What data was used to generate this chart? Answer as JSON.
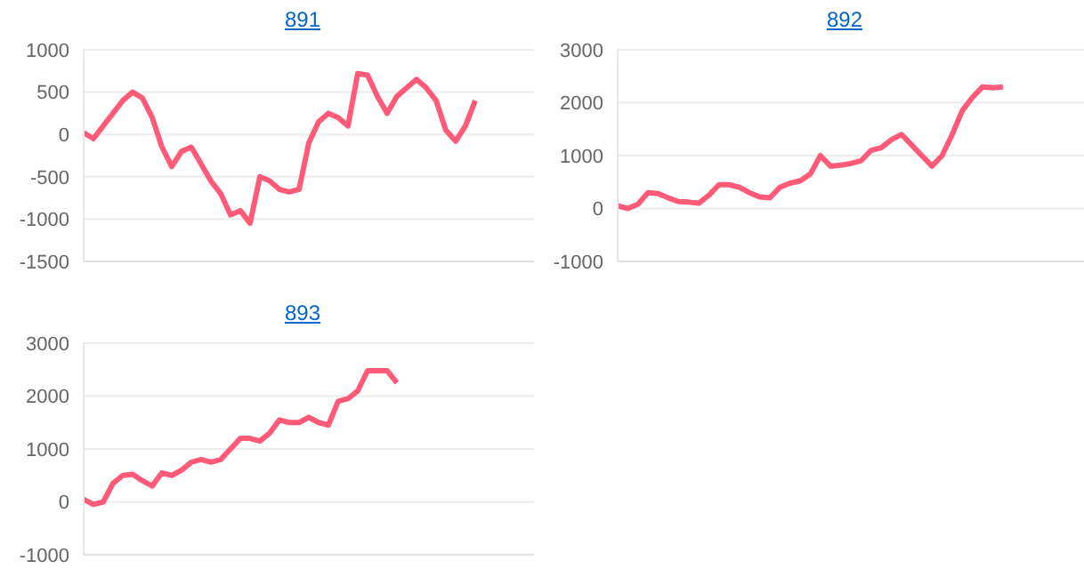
{
  "chart_data": [
    {
      "type": "line",
      "title": "891",
      "categories": [
        null,
        null,
        null,
        null,
        null,
        null,
        null,
        null,
        null,
        null,
        null,
        null,
        null,
        null,
        null,
        null,
        null,
        null,
        null,
        null,
        null,
        null,
        null,
        null,
        null,
        null,
        null,
        null,
        null,
        null,
        null,
        null,
        null,
        null,
        null,
        null,
        null,
        null,
        null,
        null,
        null,
        null,
        null,
        null,
        null,
        null,
        null
      ],
      "series": [
        {
          "color": "#ff5a78",
          "values": [
            20,
            -50,
            100,
            250,
            400,
            500,
            430,
            200,
            -150,
            -380,
            -200,
            -150,
            -350,
            -550,
            -700,
            -950,
            -900,
            -1050,
            -500,
            -550,
            -650,
            -680,
            -650,
            -100,
            150,
            250,
            200,
            100,
            720,
            700,
            450,
            250,
            450,
            550,
            650,
            550,
            400,
            50,
            -80,
            100,
            400,
            null,
            null,
            null,
            null,
            null,
            null
          ]
        }
      ],
      "ylim": [
        -1500,
        1000
      ],
      "yticks": [
        -1500,
        -1000,
        -500,
        0,
        500,
        1000
      ],
      "grid": "y",
      "tick_labels": "y",
      "legend": false,
      "marker": "none",
      "line_style": "solid"
    },
    {
      "type": "line",
      "title": "892",
      "categories": [
        null,
        null,
        null,
        null,
        null,
        null,
        null,
        null,
        null,
        null,
        null,
        null,
        null,
        null,
        null,
        null,
        null,
        null,
        null,
        null,
        null,
        null,
        null,
        null,
        null,
        null,
        null,
        null,
        null,
        null,
        null,
        null,
        null,
        null,
        null,
        null,
        null,
        null,
        null,
        null,
        null,
        null,
        null,
        null,
        null,
        null,
        null
      ],
      "series": [
        {
          "color": "#ff5a78",
          "values": [
            50,
            0,
            80,
            300,
            280,
            200,
            130,
            120,
            100,
            250,
            450,
            450,
            400,
            300,
            220,
            200,
            400,
            480,
            520,
            650,
            1000,
            800,
            820,
            850,
            900,
            1100,
            1150,
            1300,
            1400,
            1200,
            1000,
            800,
            1000,
            1400,
            1850,
            2100,
            2300,
            2280,
            2300,
            null,
            null,
            null,
            null,
            null,
            null,
            null,
            null
          ]
        }
      ],
      "ylim": [
        -1000,
        3000
      ],
      "yticks": [
        -1000,
        0,
        1000,
        2000,
        3000
      ],
      "grid": "y",
      "tick_labels": "y",
      "legend": false,
      "marker": "none",
      "line_style": "solid"
    },
    {
      "type": "line",
      "title": "893",
      "categories": [
        null,
        null,
        null,
        null,
        null,
        null,
        null,
        null,
        null,
        null,
        null,
        null,
        null,
        null,
        null,
        null,
        null,
        null,
        null,
        null,
        null,
        null,
        null,
        null,
        null,
        null,
        null,
        null,
        null,
        null,
        null,
        null,
        null,
        null,
        null,
        null,
        null,
        null,
        null,
        null,
        null,
        null,
        null,
        null,
        null,
        null,
        null
      ],
      "series": [
        {
          "color": "#ff5a78",
          "values": [
            50,
            -50,
            0,
            350,
            500,
            520,
            400,
            300,
            550,
            500,
            600,
            750,
            800,
            750,
            800,
            1000,
            1200,
            1200,
            1150,
            1300,
            1550,
            1500,
            1500,
            1600,
            1500,
            1450,
            1900,
            1950,
            2100,
            2480,
            2480,
            2480,
            2250,
            null,
            null,
            null,
            null,
            null,
            null,
            null,
            null,
            null,
            null,
            null,
            null,
            null,
            null
          ]
        }
      ],
      "ylim": [
        -1000,
        3000
      ],
      "yticks": [
        -1000,
        0,
        1000,
        2000,
        3000
      ],
      "grid": "y",
      "tick_labels": "y",
      "legend": false,
      "marker": "none",
      "line_style": "solid"
    }
  ]
}
